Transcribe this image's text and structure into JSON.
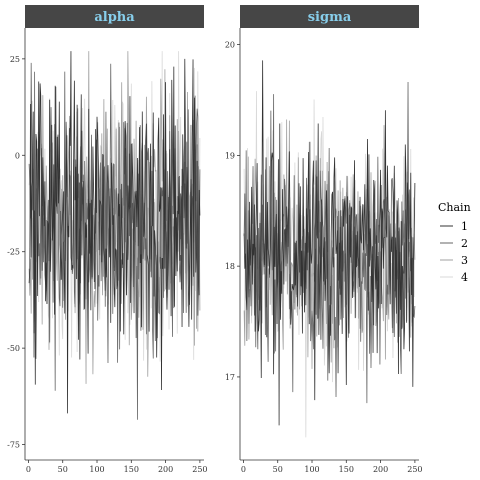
{
  "chart_data": {
    "type": "line",
    "legend": {
      "title": "Chain",
      "placement": "right",
      "entries": [
        "1",
        "2",
        "3",
        "4"
      ]
    },
    "series_colors": [
      "#333333",
      "#666666",
      "#a0a0a0",
      "#d8d8d8"
    ],
    "strip_color": "#464646",
    "x": {
      "ticks": [
        0,
        50,
        100,
        150,
        200,
        250
      ],
      "lim": [
        -5,
        256
      ]
    },
    "panels": [
      {
        "title": "alpha",
        "ylim": [
          -79,
          33
        ],
        "yticks": [
          25,
          0,
          -25,
          -50,
          -75
        ],
        "ytick_labels": [
          "25",
          "0",
          "-25",
          "-50",
          "-75"
        ],
        "series_summary": {
          "n_iter": 250,
          "center": -17,
          "spread": 17,
          "min_shown": -74,
          "max_shown": 27
        }
      },
      {
        "title": "sigma",
        "ylim": [
          16.25,
          20.15
        ],
        "yticks": [
          20,
          19,
          18,
          17
        ],
        "ytick_labels": [
          "20",
          "19",
          "18",
          "17"
        ],
        "series_summary": {
          "n_iter": 250,
          "center": 18.1,
          "spread": 0.5,
          "min_shown": 16.4,
          "max_shown": 19.9
        }
      }
    ]
  }
}
